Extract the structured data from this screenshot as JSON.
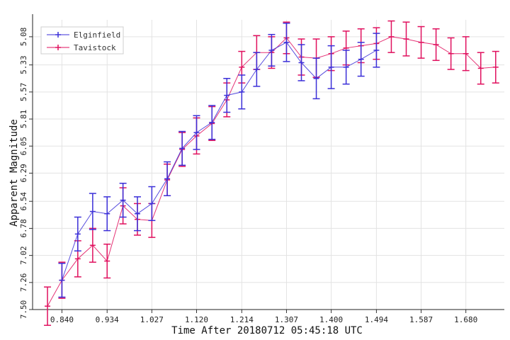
{
  "chart_data": {
    "type": "line",
    "xlabel": "Time After 20180712 05:45:18 UTC",
    "ylabel": "Apparent Magnitude",
    "x_ticks": [
      "0.840",
      "0.934",
      "1.027",
      "1.120",
      "1.214",
      "1.307",
      "1.400",
      "1.494",
      "1.587",
      "1.680"
    ],
    "y_ticks": [
      "5.08",
      "5.33",
      "5.57",
      "5.81",
      "6.05",
      "6.29",
      "6.54",
      "6.78",
      "7.02",
      "7.26",
      "7.50"
    ],
    "xlim": [
      0.779,
      1.76
    ],
    "ylim": [
      7.5,
      4.93
    ],
    "y_inverted": true,
    "grid": true,
    "legend_position": "top-left",
    "series": [
      {
        "name": "Elginfield",
        "color": "#3b2fd8",
        "points": [
          {
            "x": 0.84,
            "y": 7.24,
            "err": 0.15
          },
          {
            "x": 0.873,
            "y": 6.83,
            "err": 0.15
          },
          {
            "x": 0.904,
            "y": 6.63,
            "err": 0.16
          },
          {
            "x": 0.934,
            "y": 6.65,
            "err": 0.15
          },
          {
            "x": 0.967,
            "y": 6.53,
            "err": 0.15
          },
          {
            "x": 0.997,
            "y": 6.65,
            "err": 0.15
          },
          {
            "x": 1.027,
            "y": 6.56,
            "err": 0.15
          },
          {
            "x": 1.059,
            "y": 6.34,
            "err": 0.15
          },
          {
            "x": 1.09,
            "y": 6.07,
            "err": 0.15
          },
          {
            "x": 1.12,
            "y": 5.93,
            "err": 0.15
          },
          {
            "x": 1.152,
            "y": 5.84,
            "err": 0.15
          },
          {
            "x": 1.183,
            "y": 5.6,
            "err": 0.15
          },
          {
            "x": 1.214,
            "y": 5.57,
            "err": 0.15
          },
          {
            "x": 1.245,
            "y": 5.37,
            "err": 0.15
          },
          {
            "x": 1.276,
            "y": 5.2,
            "err": 0.14
          },
          {
            "x": 1.307,
            "y": 5.13,
            "err": 0.17
          },
          {
            "x": 1.338,
            "y": 5.31,
            "err": 0.16
          },
          {
            "x": 1.369,
            "y": 5.45,
            "err": 0.18
          },
          {
            "x": 1.4,
            "y": 5.35,
            "err": 0.19
          },
          {
            "x": 1.431,
            "y": 5.35,
            "err": 0.15
          },
          {
            "x": 1.462,
            "y": 5.28,
            "err": 0.15
          },
          {
            "x": 1.494,
            "y": 5.2,
            "err": 0.15
          }
        ]
      },
      {
        "name": "Tavistock",
        "color": "#e0105e",
        "points": [
          {
            "x": 0.81,
            "y": 7.47,
            "err": 0.17
          },
          {
            "x": 0.84,
            "y": 7.24,
            "err": 0.16
          },
          {
            "x": 0.873,
            "y": 7.05,
            "err": 0.16
          },
          {
            "x": 0.904,
            "y": 6.93,
            "err": 0.15
          },
          {
            "x": 0.934,
            "y": 7.07,
            "err": 0.15
          },
          {
            "x": 0.967,
            "y": 6.58,
            "err": 0.16
          },
          {
            "x": 0.997,
            "y": 6.7,
            "err": 0.14
          },
          {
            "x": 1.027,
            "y": 6.71,
            "err": 0.15
          },
          {
            "x": 1.059,
            "y": 6.35,
            "err": 0.14
          },
          {
            "x": 1.09,
            "y": 6.08,
            "err": 0.15
          },
          {
            "x": 1.12,
            "y": 5.96,
            "err": 0.16
          },
          {
            "x": 1.152,
            "y": 5.85,
            "err": 0.15
          },
          {
            "x": 1.183,
            "y": 5.64,
            "err": 0.15
          },
          {
            "x": 1.214,
            "y": 5.35,
            "err": 0.14
          },
          {
            "x": 1.245,
            "y": 5.22,
            "err": 0.15
          },
          {
            "x": 1.276,
            "y": 5.22,
            "err": 0.14
          },
          {
            "x": 1.307,
            "y": 5.09,
            "err": 0.14
          },
          {
            "x": 1.338,
            "y": 5.26,
            "err": 0.16
          },
          {
            "x": 1.369,
            "y": 5.27,
            "err": 0.17
          },
          {
            "x": 1.4,
            "y": 5.23,
            "err": 0.15
          },
          {
            "x": 1.431,
            "y": 5.18,
            "err": 0.15
          },
          {
            "x": 1.462,
            "y": 5.16,
            "err": 0.15
          },
          {
            "x": 1.494,
            "y": 5.14,
            "err": 0.14
          },
          {
            "x": 1.525,
            "y": 5.08,
            "err": 0.14
          },
          {
            "x": 1.556,
            "y": 5.1,
            "err": 0.15
          },
          {
            "x": 1.587,
            "y": 5.13,
            "err": 0.14
          },
          {
            "x": 1.618,
            "y": 5.15,
            "err": 0.14
          },
          {
            "x": 1.649,
            "y": 5.23,
            "err": 0.14
          },
          {
            "x": 1.68,
            "y": 5.23,
            "err": 0.15
          },
          {
            "x": 1.711,
            "y": 5.36,
            "err": 0.14
          },
          {
            "x": 1.742,
            "y": 5.35,
            "err": 0.14
          }
        ]
      }
    ]
  }
}
